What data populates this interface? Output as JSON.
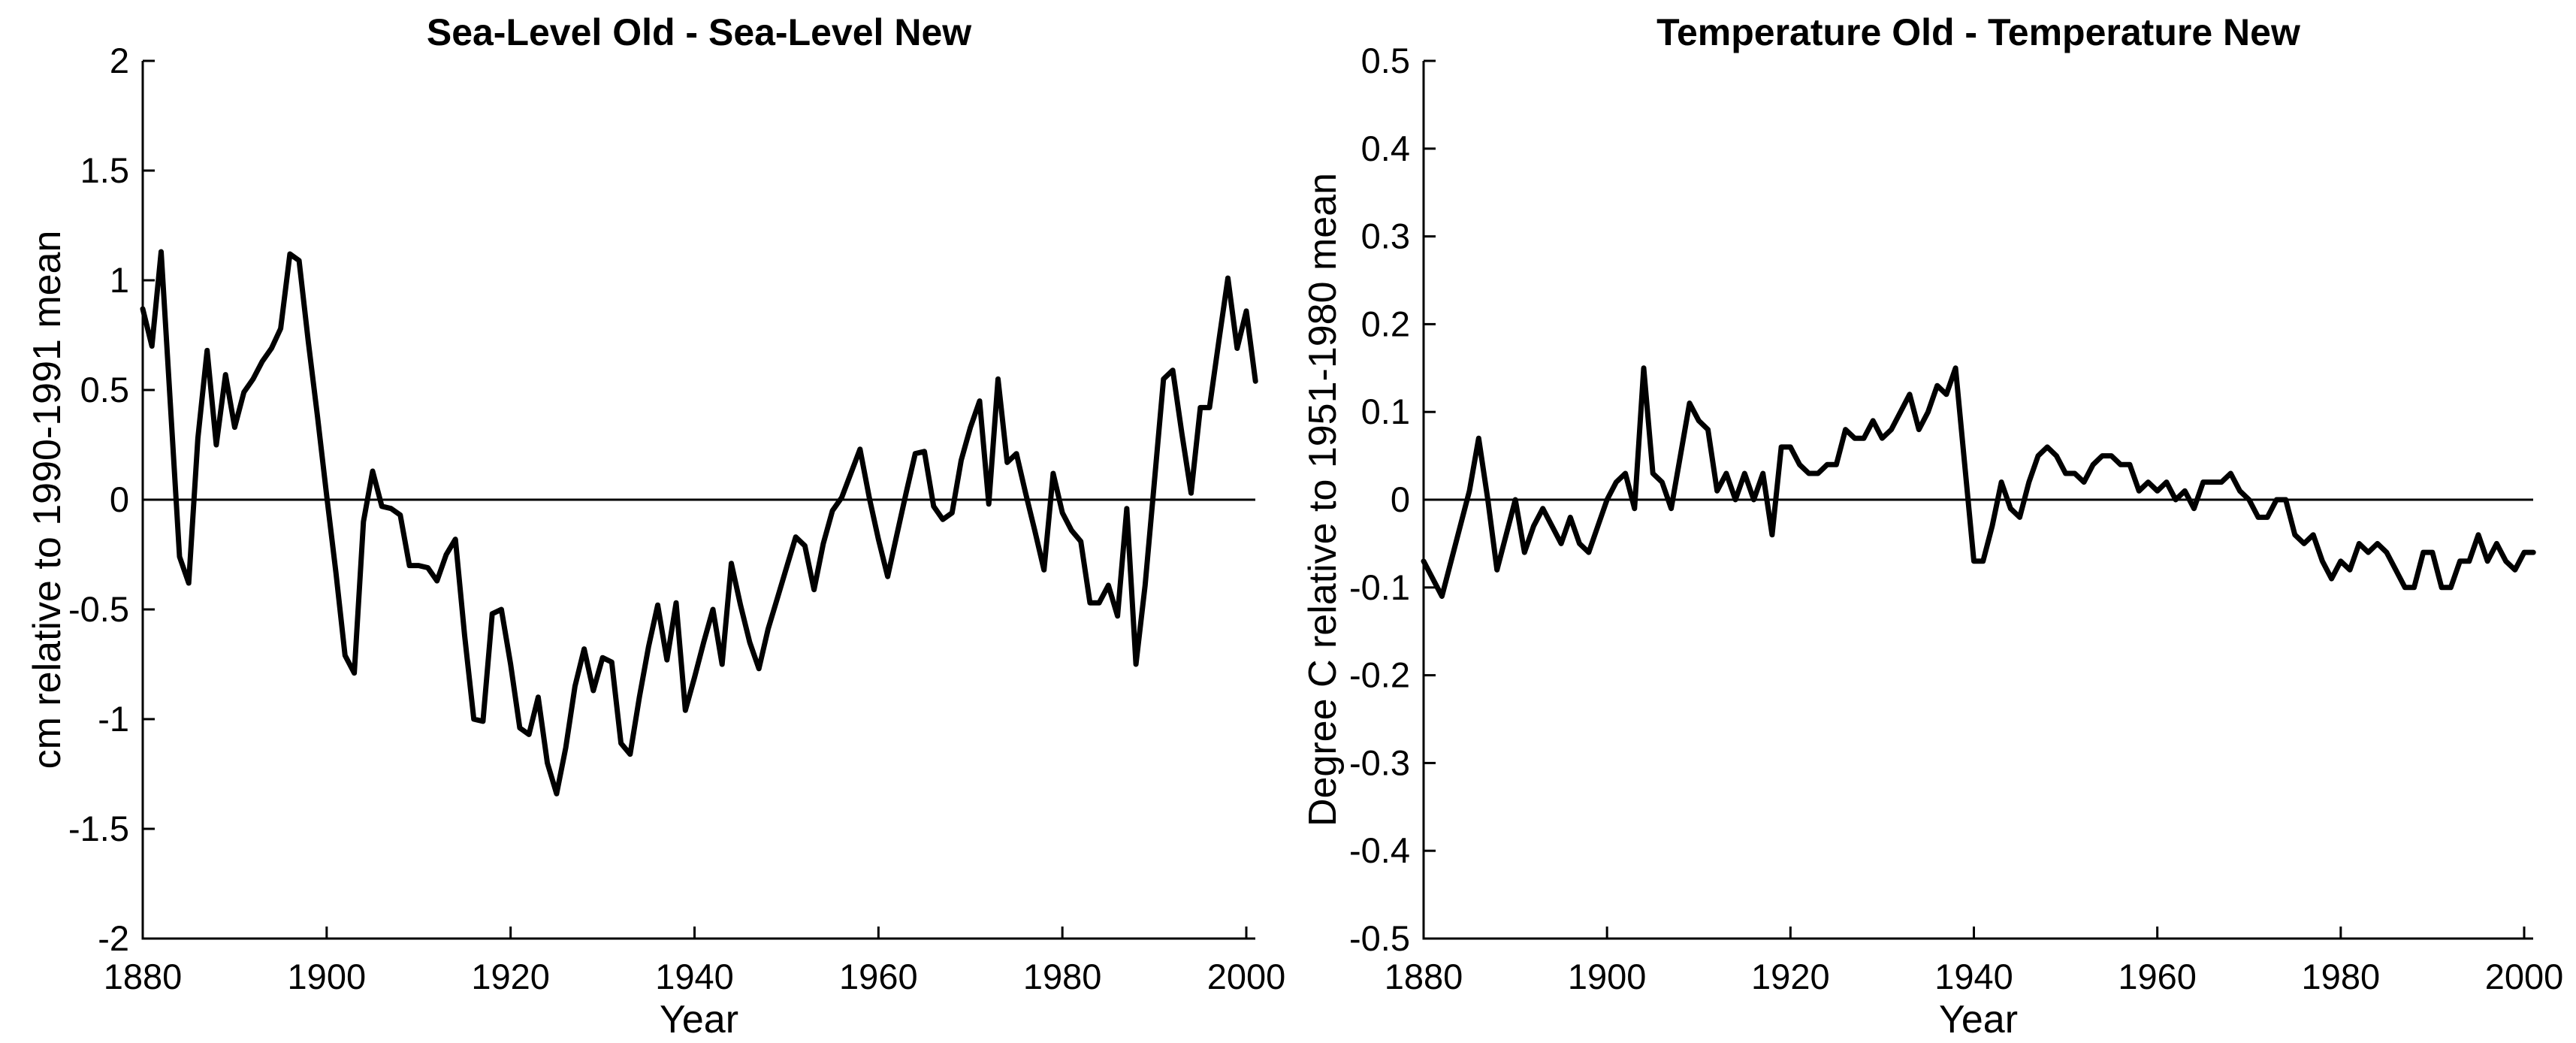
{
  "page": {
    "background": "#ffffff",
    "foreground": "#000000"
  },
  "chart_data": [
    {
      "type": "line",
      "title": "Sea-Level Old - Sea-Level New",
      "xlabel": "Year",
      "ylabel": "cm relative to 1990-1991 mean",
      "xlim": [
        1880,
        2001.5
      ],
      "ylim": [
        -2,
        2
      ],
      "xticks": [
        1880,
        1900,
        1920,
        1940,
        1960,
        1980,
        2000
      ],
      "xtick_labels": [
        "1880",
        "1900",
        "1920",
        "1940",
        "1960",
        "1980",
        "2000"
      ],
      "yticks": [
        2,
        1.5,
        1,
        0.5,
        0,
        -0.5,
        -1,
        -1.5,
        -2
      ],
      "ytick_labels": [
        "2",
        "1.5",
        "1",
        "0.5",
        "0",
        "-0.5",
        "-1",
        "-1.5",
        "-2"
      ],
      "grid": false,
      "legend": null,
      "zero_line": true,
      "line_color": "#000000",
      "line_width": 7,
      "x": [
        1880,
        1881,
        1882,
        1883,
        1884,
        1885,
        1886,
        1887,
        1888,
        1889,
        1890,
        1891,
        1892,
        1893,
        1894,
        1895,
        1896,
        1897,
        1898,
        1899,
        1900,
        1901,
        1902,
        1903,
        1904,
        1905,
        1906,
        1907,
        1908,
        1909,
        1910,
        1911,
        1912,
        1913,
        1914,
        1915,
        1916,
        1917,
        1918,
        1919,
        1920,
        1921,
        1922,
        1923,
        1924,
        1925,
        1926,
        1927,
        1928,
        1929,
        1930,
        1931,
        1932,
        1933,
        1934,
        1935,
        1936,
        1937,
        1938,
        1939,
        1940,
        1941,
        1942,
        1943,
        1944,
        1945,
        1946,
        1947,
        1948,
        1949,
        1950,
        1951,
        1952,
        1953,
        1954,
        1955,
        1956,
        1957,
        1958,
        1959,
        1960,
        1961,
        1962,
        1963,
        1964,
        1965,
        1966,
        1967,
        1968,
        1969,
        1970,
        1971,
        1972,
        1973,
        1974,
        1975,
        1976,
        1977,
        1978,
        1979,
        1980,
        1981,
        1982,
        1983,
        1984,
        1985,
        1986,
        1987,
        1988,
        1989,
        1990,
        1991,
        1992,
        1993,
        1994,
        1995,
        1996,
        1997,
        1998,
        1999,
        2000,
        2001
      ],
      "y": [
        0.87,
        0.7,
        1.13,
        0.44,
        -0.26,
        -0.38,
        0.28,
        0.68,
        0.25,
        0.57,
        0.33,
        0.49,
        0.55,
        0.63,
        0.69,
        0.78,
        1.12,
        1.09,
        0.72,
        0.38,
        0.02,
        -0.33,
        -0.71,
        -0.79,
        -0.1,
        0.13,
        -0.03,
        -0.04,
        -0.07,
        -0.3,
        -0.3,
        -0.31,
        -0.37,
        -0.25,
        -0.18,
        -0.62,
        -1.0,
        -1.01,
        -0.52,
        -0.5,
        -0.75,
        -1.04,
        -1.07,
        -0.9,
        -1.2,
        -1.34,
        -1.13,
        -0.85,
        -0.68,
        -0.87,
        -0.72,
        -0.74,
        -1.11,
        -1.16,
        -0.9,
        -0.67,
        -0.48,
        -0.73,
        -0.47,
        -0.96,
        -0.81,
        -0.65,
        -0.5,
        -0.75,
        -0.29,
        -0.48,
        -0.65,
        -0.77,
        -0.59,
        -0.45,
        -0.31,
        -0.17,
        -0.21,
        -0.41,
        -0.2,
        -0.05,
        0.01,
        0.12,
        0.23,
        0.01,
        -0.18,
        -0.35,
        -0.16,
        0.03,
        0.21,
        0.22,
        -0.03,
        -0.09,
        -0.06,
        0.18,
        0.33,
        0.45,
        -0.02,
        0.55,
        0.17,
        0.21,
        0.03,
        -0.14,
        -0.32,
        0.12,
        -0.06,
        -0.14,
        -0.19,
        -0.47,
        -0.47,
        -0.39,
        -0.53,
        -0.04,
        -0.75,
        -0.39,
        0.08,
        0.55,
        0.59,
        0.3,
        0.03,
        0.42,
        0.42,
        0.72,
        1.01,
        0.69,
        0.86,
        0.54
      ]
    },
    {
      "type": "line",
      "title": "Temperature Old - Temperature New",
      "xlabel": "Year",
      "ylabel": "Degree C relative to 1951-1980 mean",
      "xlim": [
        1880,
        2001.5
      ],
      "ylim": [
        -0.5,
        0.5
      ],
      "xticks": [
        1880,
        1900,
        1920,
        1940,
        1960,
        1980,
        2000
      ],
      "xtick_labels": [
        "1880",
        "1900",
        "1920",
        "1940",
        "1960",
        "1980",
        "2000"
      ],
      "yticks": [
        0.5,
        0.4,
        0.3,
        0.2,
        0.1,
        0,
        -0.1,
        -0.2,
        -0.3,
        -0.4,
        -0.5
      ],
      "ytick_labels": [
        "0.5",
        "0.4",
        "0.3",
        "0.2",
        "0.1",
        "0",
        "-0.1",
        "-0.2",
        "-0.3",
        "-0.4",
        "-0.5"
      ],
      "grid": false,
      "legend": null,
      "zero_line": true,
      "line_color": "#000000",
      "line_width": 7,
      "x": [
        1880,
        1881,
        1882,
        1883,
        1884,
        1885,
        1886,
        1887,
        1888,
        1889,
        1890,
        1891,
        1892,
        1893,
        1894,
        1895,
        1896,
        1897,
        1898,
        1899,
        1900,
        1901,
        1902,
        1903,
        1904,
        1905,
        1906,
        1907,
        1908,
        1909,
        1910,
        1911,
        1912,
        1913,
        1914,
        1915,
        1916,
        1917,
        1918,
        1919,
        1920,
        1921,
        1922,
        1923,
        1924,
        1925,
        1926,
        1927,
        1928,
        1929,
        1930,
        1931,
        1932,
        1933,
        1934,
        1935,
        1936,
        1937,
        1938,
        1939,
        1940,
        1941,
        1942,
        1943,
        1944,
        1945,
        1946,
        1947,
        1948,
        1949,
        1950,
        1951,
        1952,
        1953,
        1954,
        1955,
        1956,
        1957,
        1958,
        1959,
        1960,
        1961,
        1962,
        1963,
        1964,
        1965,
        1966,
        1967,
        1968,
        1969,
        1970,
        1971,
        1972,
        1973,
        1974,
        1975,
        1976,
        1977,
        1978,
        1979,
        1980,
        1981,
        1982,
        1983,
        1984,
        1985,
        1986,
        1987,
        1988,
        1989,
        1990,
        1991,
        1992,
        1993,
        1994,
        1995,
        1996,
        1997,
        1998,
        1999,
        2000,
        2001
      ],
      "y": [
        -0.07,
        -0.09,
        -0.11,
        -0.07,
        -0.03,
        0.01,
        0.07,
        0.0,
        -0.08,
        -0.04,
        0.0,
        -0.06,
        -0.03,
        -0.01,
        -0.03,
        -0.05,
        -0.02,
        -0.05,
        -0.06,
        -0.03,
        0.0,
        0.02,
        0.03,
        -0.01,
        0.15,
        0.03,
        0.02,
        -0.01,
        0.05,
        0.11,
        0.09,
        0.08,
        0.01,
        0.03,
        0.0,
        0.03,
        0.0,
        0.03,
        -0.04,
        0.06,
        0.06,
        0.04,
        0.03,
        0.03,
        0.04,
        0.04,
        0.08,
        0.07,
        0.07,
        0.09,
        0.07,
        0.08,
        0.1,
        0.12,
        0.08,
        0.1,
        0.13,
        0.12,
        0.15,
        0.04,
        -0.07,
        -0.07,
        -0.03,
        0.02,
        -0.01,
        -0.02,
        0.02,
        0.05,
        0.06,
        0.05,
        0.03,
        0.03,
        0.02,
        0.04,
        0.05,
        0.05,
        0.04,
        0.04,
        0.01,
        0.02,
        0.01,
        0.02,
        0.0,
        0.01,
        -0.01,
        0.02,
        0.02,
        0.02,
        0.03,
        0.01,
        0.0,
        -0.02,
        -0.02,
        0.0,
        0.0,
        -0.04,
        -0.05,
        -0.04,
        -0.07,
        -0.09,
        -0.07,
        -0.08,
        -0.05,
        -0.06,
        -0.05,
        -0.06,
        -0.08,
        -0.1,
        -0.1,
        -0.06,
        -0.06,
        -0.1,
        -0.1,
        -0.07,
        -0.07,
        -0.04,
        -0.07,
        -0.05,
        -0.07,
        -0.08,
        -0.06,
        -0.06
      ]
    }
  ]
}
